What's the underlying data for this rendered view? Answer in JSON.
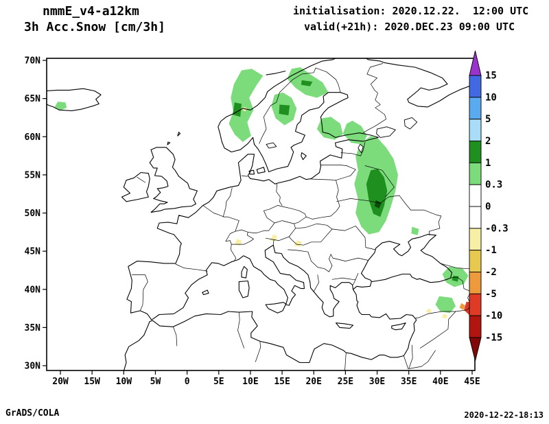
{
  "header": {
    "model": "nmmE_v4-a12km",
    "field": "3h Acc.Snow [cm/3h]",
    "init_line": "initialisation: 2020.12.22.  12:00 UTC",
    "valid_line": "valid(+21h): 2020.DEC.23 09:00 UTC"
  },
  "footer": {
    "left": "GrADS/COLA",
    "right": "2020-12-22-18:13"
  },
  "chart_data": {
    "type": "heatmap",
    "variable": "3h Acc.Snow",
    "units": "cm/3h",
    "model": "nmmE_v4-a12km",
    "initialisation": "2020.12.22. 12:00 UTC",
    "valid": "2020.DEC.23 09:00 UTC",
    "lead": "+21h",
    "projection": "latlon",
    "region": "Europe",
    "lon_range": [
      -22.2,
      45.4
    ],
    "lat_range": [
      29.4,
      70.3
    ],
    "grid": "off",
    "lon_ticks": {
      "values": [
        -20,
        -15,
        -10,
        -5,
        0,
        5,
        10,
        15,
        20,
        25,
        30,
        35,
        40,
        45
      ],
      "labels": [
        "20W",
        "15W",
        "10W",
        "5W",
        "0",
        "5E",
        "10E",
        "15E",
        "20E",
        "25E",
        "30E",
        "35E",
        "40E",
        "45E"
      ]
    },
    "lat_ticks": {
      "values": [
        30,
        35,
        40,
        45,
        50,
        55,
        60,
        65,
        70
      ],
      "labels": [
        "30N",
        "35N",
        "40N",
        "45N",
        "50N",
        "55N",
        "60N",
        "65N",
        "70N"
      ]
    },
    "colorbar": {
      "orientation": "vertical-right",
      "boundary_labels": [
        "15",
        "10",
        "5",
        "2",
        "1",
        "0.3",
        "0",
        "-0.3",
        "-1",
        "-2",
        "-5",
        "-10",
        "-15"
      ],
      "colors_top_to_bottom": [
        "#9933CC",
        "#4169E1",
        "#5AAAF0",
        "#A8DCF8",
        "#1F8F1F",
        "#7CDC7C",
        "#FFFFFF",
        "#FFFFFF",
        "#F8EFA6",
        "#E7C94F",
        "#EC9A3C",
        "#DE3A26",
        "#B01510",
        "#800808"
      ]
    },
    "snow_regions": [
      {
        "name": "iceland-southeast",
        "band": "0.3-1",
        "points": [
          [
            -20.4,
            64.6
          ],
          [
            -20.9,
            63.9
          ],
          [
            -20.1,
            63.4
          ],
          [
            -19.0,
            63.8
          ],
          [
            -19.2,
            64.5
          ]
        ]
      },
      {
        "name": "norway-mountains",
        "band": "0.3-1",
        "points": [
          [
            8.6,
            68.7
          ],
          [
            7.4,
            66.9
          ],
          [
            6.9,
            65.1
          ],
          [
            7.3,
            63.3
          ],
          [
            6.6,
            61.7
          ],
          [
            7.5,
            60.3
          ],
          [
            8.8,
            59.3
          ],
          [
            10.1,
            60.1
          ],
          [
            9.5,
            61.9
          ],
          [
            10.5,
            63.5
          ],
          [
            9.8,
            65.1
          ],
          [
            11.0,
            66.8
          ],
          [
            12.0,
            68.0
          ],
          [
            10.2,
            68.9
          ]
        ]
      },
      {
        "name": "norway-core",
        "band": "1-2",
        "points": [
          [
            7.5,
            64.5
          ],
          [
            8.6,
            64.3
          ],
          [
            8.4,
            62.6
          ],
          [
            7.2,
            62.9
          ]
        ]
      },
      {
        "name": "norway-yellow-speck",
        "band": "-1--0.3",
        "points": [
          [
            8.9,
            63.9
          ],
          [
            9.5,
            63.7
          ],
          [
            9.2,
            63.3
          ],
          [
            8.7,
            63.5
          ]
        ]
      },
      {
        "name": "finnmark",
        "band": "0.3-1",
        "points": [
          [
            16.5,
            68.9
          ],
          [
            15.8,
            67.6
          ],
          [
            17.1,
            66.4
          ],
          [
            18.7,
            65.5
          ],
          [
            20.5,
            65.1
          ],
          [
            22.3,
            65.8
          ],
          [
            21.4,
            67.1
          ],
          [
            19.4,
            68.2
          ],
          [
            17.9,
            69.1
          ]
        ]
      },
      {
        "name": "finnmark-core",
        "band": "1-2",
        "points": [
          [
            18.1,
            67.4
          ],
          [
            19.8,
            67.2
          ],
          [
            19.4,
            66.6
          ],
          [
            18.0,
            66.8
          ]
        ]
      },
      {
        "name": "sweden-central",
        "band": "0.3-1",
        "points": [
          [
            13.8,
            65.5
          ],
          [
            13.3,
            64.0
          ],
          [
            14.0,
            62.4
          ],
          [
            15.4,
            61.5
          ],
          [
            16.8,
            62.2
          ],
          [
            17.3,
            63.7
          ],
          [
            16.5,
            65.1
          ],
          [
            15.1,
            65.8
          ]
        ]
      },
      {
        "name": "sweden-core",
        "band": "1-2",
        "points": [
          [
            14.6,
            64.2
          ],
          [
            16.2,
            64.1
          ],
          [
            16.0,
            62.8
          ],
          [
            14.5,
            63.0
          ]
        ]
      },
      {
        "name": "finland-southwest",
        "band": "0.3-1",
        "points": [
          [
            21.2,
            62.4
          ],
          [
            20.5,
            61.0
          ],
          [
            21.6,
            59.9
          ],
          [
            23.3,
            59.6
          ],
          [
            24.6,
            60.3
          ],
          [
            24.2,
            61.7
          ],
          [
            22.7,
            62.6
          ]
        ]
      },
      {
        "name": "finland-southeast",
        "band": "0.3-1",
        "points": [
          [
            25.2,
            61.7
          ],
          [
            24.6,
            60.4
          ],
          [
            25.9,
            59.2
          ],
          [
            27.7,
            59.0
          ],
          [
            28.4,
            60.1
          ],
          [
            27.5,
            61.4
          ],
          [
            26.1,
            62.1
          ]
        ]
      },
      {
        "name": "russia-belarus-ukraine",
        "band": "0.3-1",
        "points": [
          [
            29.0,
            60.1
          ],
          [
            27.3,
            59.0
          ],
          [
            26.6,
            57.4
          ],
          [
            27.0,
            55.6
          ],
          [
            26.4,
            53.8
          ],
          [
            27.0,
            51.8
          ],
          [
            26.6,
            50.0
          ],
          [
            27.5,
            48.2
          ],
          [
            28.7,
            47.2
          ],
          [
            30.3,
            47.5
          ],
          [
            31.4,
            49.0
          ],
          [
            32.2,
            50.9
          ],
          [
            32.9,
            52.9
          ],
          [
            33.3,
            55.0
          ],
          [
            32.6,
            57.1
          ],
          [
            31.4,
            58.6
          ],
          [
            30.1,
            59.8
          ]
        ]
      },
      {
        "name": "russia-core",
        "band": "1-2",
        "points": [
          [
            29.0,
            55.6
          ],
          [
            28.3,
            53.8
          ],
          [
            28.7,
            51.7
          ],
          [
            29.4,
            49.9
          ],
          [
            30.5,
            49.5
          ],
          [
            31.1,
            50.9
          ],
          [
            31.6,
            52.9
          ],
          [
            31.1,
            54.7
          ],
          [
            30.1,
            55.8
          ]
        ]
      },
      {
        "name": "local-max-spot",
        "band": "1-2",
        "color": "#0B4B0B",
        "points": [
          [
            29.8,
            51.7
          ],
          [
            29.6,
            50.9
          ],
          [
            30.3,
            50.6
          ],
          [
            30.7,
            51.3
          ]
        ]
      },
      {
        "name": "russia-east-speck",
        "band": "0.3-1",
        "points": [
          [
            35.5,
            48.2
          ],
          [
            35.4,
            47.3
          ],
          [
            36.4,
            47.1
          ],
          [
            36.6,
            47.9
          ]
        ]
      },
      {
        "name": "alps-west-speck",
        "band": "-1--0.3",
        "points": [
          [
            7.9,
            46.6
          ],
          [
            7.5,
            45.9
          ],
          [
            8.4,
            45.7
          ],
          [
            8.6,
            46.4
          ]
        ]
      },
      {
        "name": "alps-east-speck",
        "band": "-1--0.3",
        "points": [
          [
            13.6,
            47.2
          ],
          [
            13.1,
            46.4
          ],
          [
            14.0,
            46.3
          ],
          [
            14.2,
            47.0
          ]
        ]
      },
      {
        "name": "pannonia-speck",
        "band": "-1--0.3",
        "points": [
          [
            17.3,
            46.4
          ],
          [
            16.8,
            45.7
          ],
          [
            17.9,
            45.6
          ],
          [
            18.1,
            46.3
          ]
        ]
      },
      {
        "name": "georgia-ne-turkey",
        "band": "0.3-1",
        "points": [
          [
            41.4,
            43.0
          ],
          [
            40.3,
            42.0
          ],
          [
            40.9,
            40.9
          ],
          [
            42.2,
            40.3
          ],
          [
            43.7,
            40.7
          ],
          [
            44.4,
            41.8
          ],
          [
            43.5,
            42.7
          ]
        ]
      },
      {
        "name": "georgia-core",
        "band": "1-2",
        "points": [
          [
            42.0,
            41.8
          ],
          [
            42.9,
            41.7
          ],
          [
            42.7,
            41.0
          ],
          [
            41.8,
            41.2
          ]
        ]
      },
      {
        "name": "east-turkey",
        "band": "0.3-1",
        "points": [
          [
            39.8,
            39.1
          ],
          [
            39.2,
            38.0
          ],
          [
            40.0,
            37.1
          ],
          [
            41.5,
            36.9
          ],
          [
            42.4,
            37.8
          ],
          [
            41.8,
            38.9
          ]
        ]
      },
      {
        "name": "armenia-edge",
        "band": "0.3-1",
        "points": [
          [
            44.8,
            39.8
          ],
          [
            44.5,
            39.1
          ],
          [
            45.4,
            38.9
          ],
          [
            45.4,
            39.7
          ]
        ]
      },
      {
        "name": "caucasus-orange-speck",
        "band": "-5--2",
        "points": [
          [
            43.3,
            38.2
          ],
          [
            43.0,
            37.6
          ],
          [
            43.6,
            37.3
          ],
          [
            43.9,
            37.9
          ]
        ]
      },
      {
        "name": "ararat-red-blob",
        "band": "-10--5",
        "points": [
          [
            44.1,
            38.4
          ],
          [
            43.7,
            37.3
          ],
          [
            44.6,
            36.6
          ],
          [
            45.4,
            36.9
          ],
          [
            45.4,
            38.2
          ]
        ]
      },
      {
        "name": "se-turkey-yellow-1",
        "band": "-1--0.3",
        "points": [
          [
            40.5,
            36.8
          ],
          [
            40.2,
            36.3
          ],
          [
            40.9,
            36.2
          ],
          [
            41.1,
            36.6
          ]
        ]
      },
      {
        "name": "se-turkey-yellow-2",
        "band": "-1--0.3",
        "points": [
          [
            38.0,
            37.5
          ],
          [
            37.7,
            37.0
          ],
          [
            38.4,
            36.9
          ],
          [
            38.6,
            37.3
          ]
        ]
      }
    ]
  }
}
